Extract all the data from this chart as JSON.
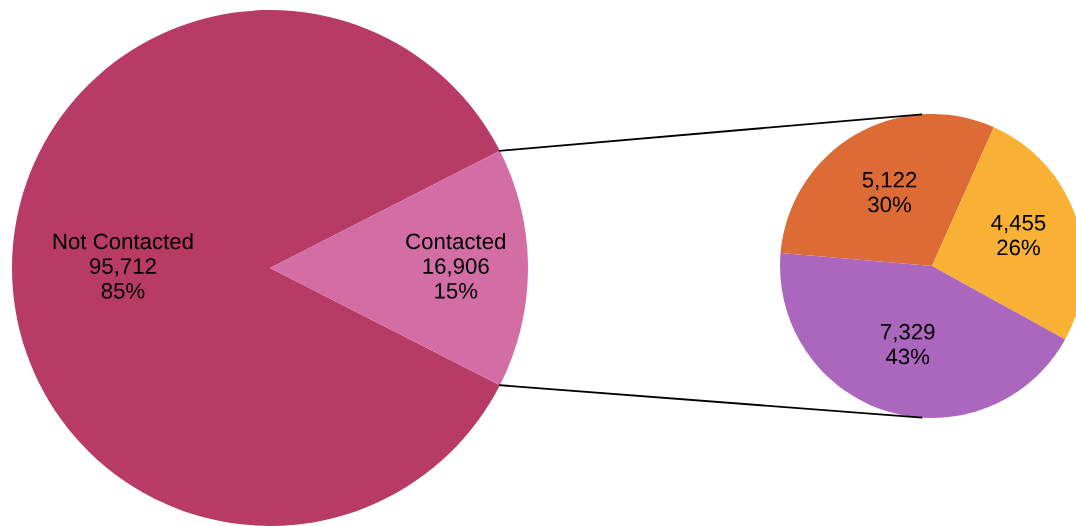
{
  "chart_data": [
    {
      "type": "pie",
      "categories": [
        "Not Contacted",
        "Contacted"
      ],
      "values": [
        95712,
        16906
      ],
      "colors": [
        "#b73b65",
        "#d36ea5"
      ],
      "value_labels": [
        "95,712\n85%",
        "16,906\n15%"
      ]
    },
    {
      "type": "pie",
      "categories": [
        null,
        null,
        null
      ],
      "values": [
        5122,
        4455,
        7329
      ],
      "colors": [
        "#dd6b36",
        "#f8b135",
        "#ab66bd"
      ],
      "value_labels": [
        "5,122\n30%",
        "4,455\n26%",
        "7,329\n43%"
      ]
    }
  ]
}
